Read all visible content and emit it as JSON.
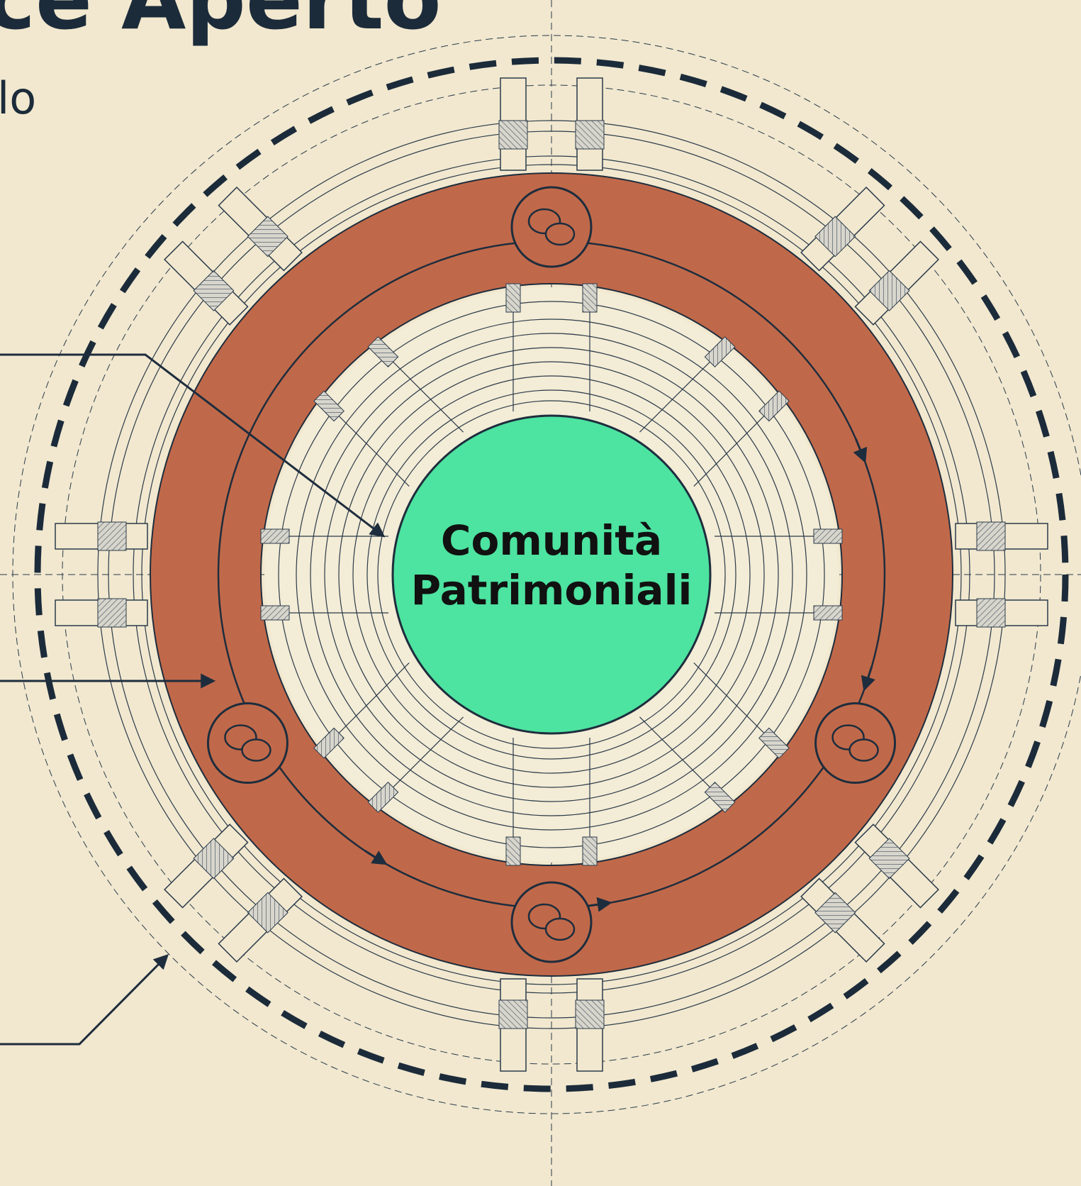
{
  "header": {
    "title": "ce Aperto",
    "subtitle": "lo"
  },
  "center": {
    "label_lines": [
      "Comunità",
      "Patrimoniali"
    ]
  }
}
